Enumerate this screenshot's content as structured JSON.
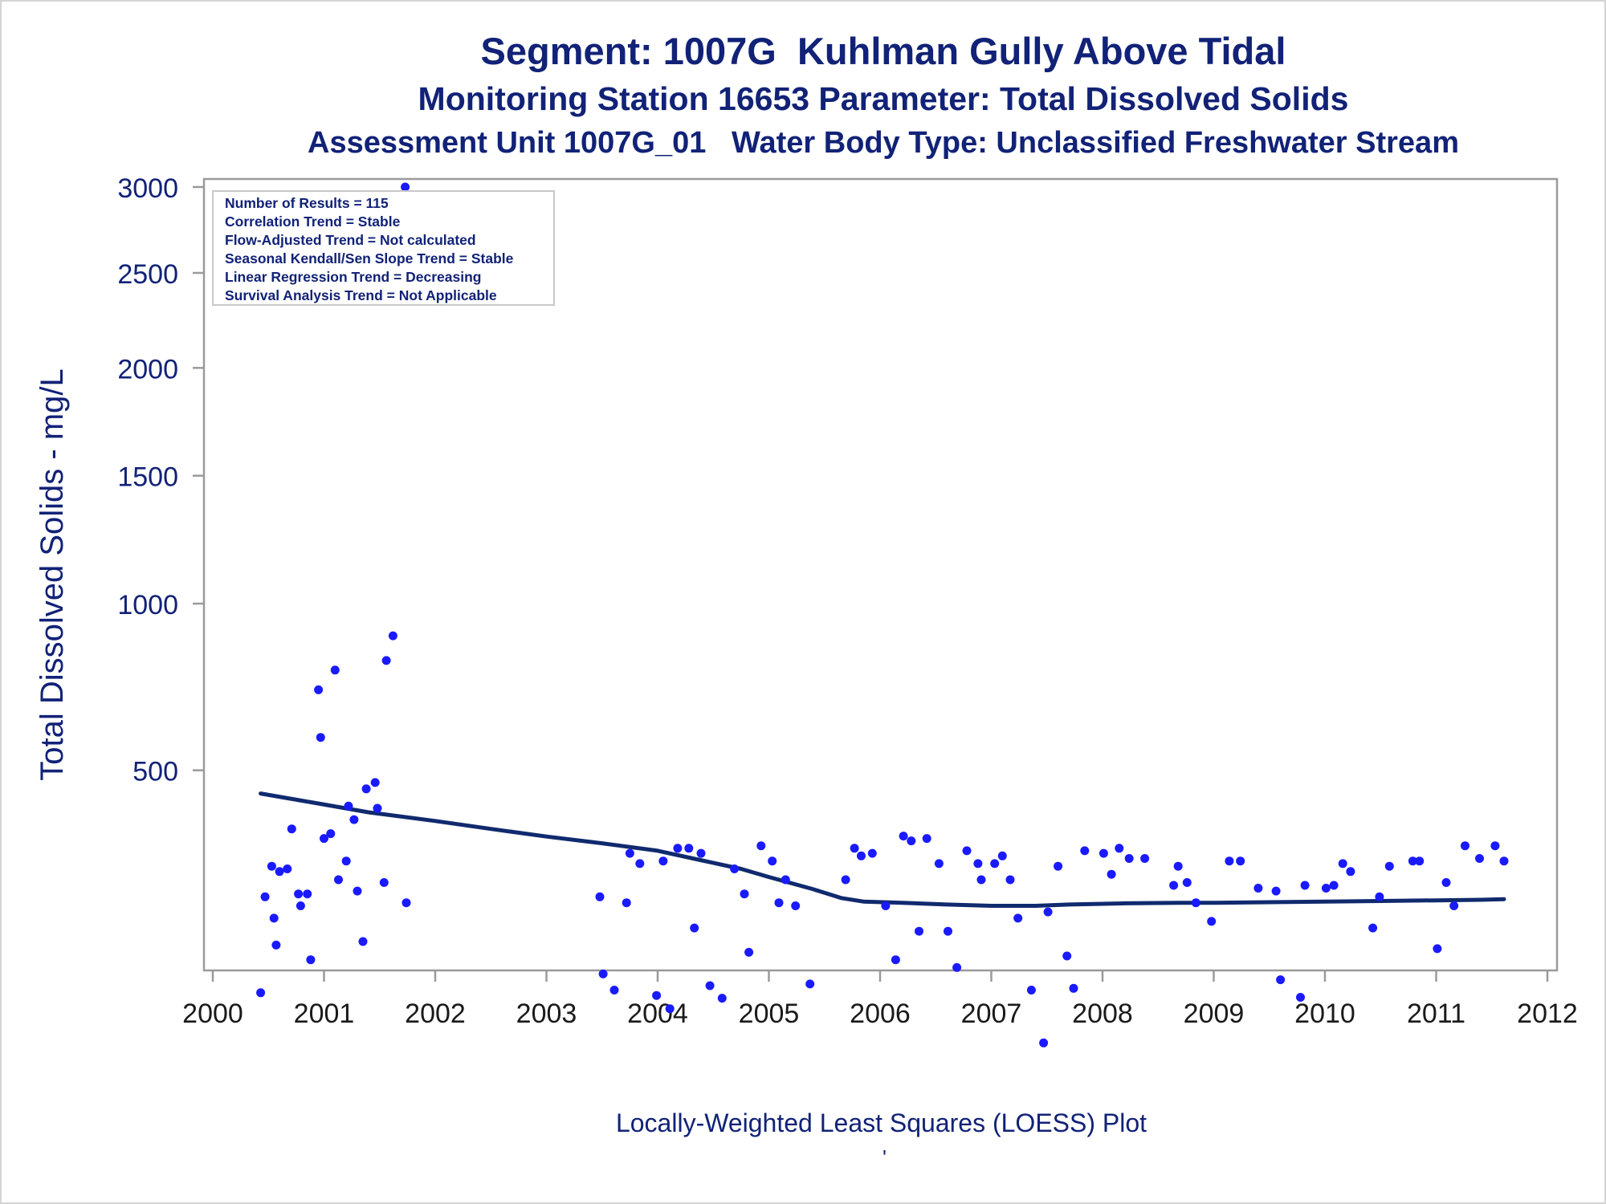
{
  "titles": {
    "line1": "Segment: 1007G  Kuhlman Gully Above Tidal",
    "line2": "Monitoring Station 16653 Parameter: Total Dissolved Solids",
    "line3": "Assessment Unit 1007G_01   Water Body Type: Unclassified Freshwater Stream"
  },
  "footnote": "Locally-Weighted Least Squares (LOESS) Plot",
  "footnote_mark": "'",
  "colors": {
    "title": "#112277",
    "points": "#1a1aff",
    "trend_line": "#102a6e",
    "axes": "#9a9a9a"
  },
  "chart_data": {
    "type": "scatter",
    "ylabel": "Total Dissolved Solids - mg/L",
    "xlabel": "",
    "y_scale": "sqrt",
    "ylim": [
      0,
      3000
    ],
    "xlim": [
      2000,
      2012
    ],
    "y_ticks": [
      500,
      1000,
      1500,
      2000,
      2500,
      3000
    ],
    "x_ticks": [
      2000,
      2001,
      2002,
      2003,
      2004,
      2005,
      2006,
      2007,
      2008,
      2009,
      2010,
      2011,
      2012
    ],
    "legend_position": "top-left",
    "stats_box": [
      "Number of Results = 115",
      "Correlation Trend = Stable",
      "Flow-Adjusted Trend = Not calculated",
      "Seasonal Kendall/Sen Slope Trend = Stable",
      "Linear Regression Trend = Decreasing",
      "Survival Analysis Trend = Not Applicable"
    ],
    "points": [
      [
        2000.43,
        100
      ],
      [
        2000.47,
        235
      ],
      [
        2000.53,
        290
      ],
      [
        2000.55,
        200
      ],
      [
        2000.57,
        160
      ],
      [
        2000.6,
        280
      ],
      [
        2000.67,
        285
      ],
      [
        2000.71,
        365
      ],
      [
        2000.77,
        240
      ],
      [
        2000.79,
        220
      ],
      [
        2000.85,
        240
      ],
      [
        2000.88,
        140
      ],
      [
        2000.95,
        720
      ],
      [
        2000.97,
        585
      ],
      [
        2001.0,
        345
      ],
      [
        2001.06,
        355
      ],
      [
        2001.1,
        780
      ],
      [
        2001.13,
        265
      ],
      [
        2001.2,
        300
      ],
      [
        2001.22,
        415
      ],
      [
        2001.27,
        385
      ],
      [
        2001.3,
        245
      ],
      [
        2001.35,
        165
      ],
      [
        2001.38,
        455
      ],
      [
        2001.46,
        470
      ],
      [
        2001.48,
        410
      ],
      [
        2001.54,
        260
      ],
      [
        2001.56,
        810
      ],
      [
        2001.62,
        890
      ],
      [
        2001.73,
        3000
      ],
      [
        2001.74,
        225
      ],
      [
        2003.48,
        235
      ],
      [
        2003.51,
        122
      ],
      [
        2003.61,
        103
      ],
      [
        2003.72,
        225
      ],
      [
        2003.75,
        315
      ],
      [
        2003.84,
        295
      ],
      [
        2003.99,
        97
      ],
      [
        2004.05,
        300
      ],
      [
        2004.11,
        83
      ],
      [
        2004.18,
        325
      ],
      [
        2004.28,
        325
      ],
      [
        2004.33,
        185
      ],
      [
        2004.39,
        315
      ],
      [
        2004.47,
        108
      ],
      [
        2004.58,
        94
      ],
      [
        2004.69,
        285
      ],
      [
        2004.78,
        240
      ],
      [
        2004.82,
        150
      ],
      [
        2004.93,
        330
      ],
      [
        2005.03,
        300
      ],
      [
        2005.09,
        225
      ],
      [
        2005.15,
        265
      ],
      [
        2005.24,
        220
      ],
      [
        2005.37,
        110
      ],
      [
        2005.69,
        265
      ],
      [
        2005.77,
        325
      ],
      [
        2005.83,
        310
      ],
      [
        2005.93,
        315
      ],
      [
        2006.05,
        220
      ],
      [
        2006.14,
        140
      ],
      [
        2006.21,
        350
      ],
      [
        2006.28,
        340
      ],
      [
        2006.35,
        180
      ],
      [
        2006.42,
        345
      ],
      [
        2006.53,
        295
      ],
      [
        2006.61,
        180
      ],
      [
        2006.69,
        130
      ],
      [
        2006.78,
        320
      ],
      [
        2006.88,
        295
      ],
      [
        2006.91,
        265
      ],
      [
        2007.03,
        295
      ],
      [
        2007.1,
        310
      ],
      [
        2007.17,
        265
      ],
      [
        2007.24,
        200
      ],
      [
        2007.36,
        103
      ],
      [
        2007.47,
        52
      ],
      [
        2007.51,
        210
      ],
      [
        2007.6,
        290
      ],
      [
        2007.68,
        145
      ],
      [
        2007.74,
        105
      ],
      [
        2007.84,
        320
      ],
      [
        2008.01,
        315
      ],
      [
        2008.08,
        275
      ],
      [
        2008.15,
        325
      ],
      [
        2008.24,
        305
      ],
      [
        2008.38,
        305
      ],
      [
        2008.64,
        255
      ],
      [
        2008.68,
        290
      ],
      [
        2008.76,
        260
      ],
      [
        2008.84,
        225
      ],
      [
        2008.98,
        195
      ],
      [
        2009.14,
        300
      ],
      [
        2009.24,
        300
      ],
      [
        2009.4,
        250
      ],
      [
        2009.56,
        245
      ],
      [
        2009.6,
        115
      ],
      [
        2009.78,
        95
      ],
      [
        2009.82,
        255
      ],
      [
        2010.01,
        250
      ],
      [
        2010.08,
        255
      ],
      [
        2010.16,
        295
      ],
      [
        2010.23,
        280
      ],
      [
        2010.43,
        185
      ],
      [
        2010.49,
        235
      ],
      [
        2010.58,
        290
      ],
      [
        2010.79,
        300
      ],
      [
        2010.85,
        300
      ],
      [
        2011.01,
        155
      ],
      [
        2011.09,
        260
      ],
      [
        2011.16,
        220
      ],
      [
        2011.26,
        330
      ],
      [
        2011.39,
        305
      ],
      [
        2011.53,
        330
      ],
      [
        2011.61,
        300
      ]
    ],
    "trend_line": [
      [
        2000.43,
        444
      ],
      [
        2000.9,
        423
      ],
      [
        2001.4,
        401
      ],
      [
        2002.0,
        382
      ],
      [
        2002.5,
        365
      ],
      [
        2003.0,
        349
      ],
      [
        2003.5,
        335
      ],
      [
        2004.0,
        320
      ],
      [
        2004.4,
        301
      ],
      [
        2004.75,
        285
      ],
      [
        2005.0,
        270
      ],
      [
        2005.4,
        248
      ],
      [
        2005.65,
        233
      ],
      [
        2005.85,
        227
      ],
      [
        2006.2,
        225
      ],
      [
        2006.6,
        222
      ],
      [
        2007.0,
        220
      ],
      [
        2007.4,
        220
      ],
      [
        2007.7,
        222
      ],
      [
        2008.2,
        224
      ],
      [
        2008.7,
        225
      ],
      [
        2009.0,
        225
      ],
      [
        2009.5,
        226
      ],
      [
        2010.0,
        227
      ],
      [
        2010.5,
        228
      ],
      [
        2011.0,
        229
      ],
      [
        2011.4,
        230
      ],
      [
        2011.61,
        231
      ]
    ]
  }
}
